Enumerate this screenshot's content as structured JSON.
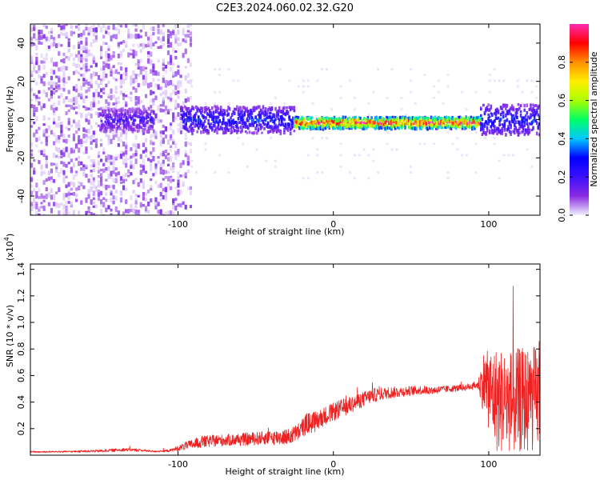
{
  "title": "C2E3.2024.060.02.32.G20",
  "colors": {
    "snr_line": "#ee2020",
    "spectrogram_noise": "#7a2ef0",
    "colorbar": [
      "#f0f0ff",
      "#8a2be2",
      "#3d10ff",
      "#0000ff",
      "#00c8ff",
      "#00ff66",
      "#aaff00",
      "#ffee00",
      "#ff9000",
      "#ff0000",
      "#ff2ab0"
    ]
  },
  "chart_data": [
    {
      "type": "heatmap",
      "name": "spectrogram",
      "xlabel": "Height of straight line (km)",
      "ylabel": "Frequency (Hz)",
      "xlim": [
        -195,
        133
      ],
      "ylim": [
        -50,
        50
      ],
      "x_ticks": [
        -100,
        0,
        100
      ],
      "x_tick_labels": [
        "-100",
        "0",
        "100"
      ],
      "y_ticks": [
        40,
        20,
        0,
        -20,
        -40
      ],
      "y_tick_labels": [
        "40",
        "20",
        "0",
        "-20",
        "-40"
      ],
      "colorbar": {
        "label": "Normalized spectral amplitude",
        "range": [
          0,
          1
        ],
        "ticks": [
          0.0,
          0.2,
          0.4,
          0.6,
          0.8
        ],
        "tick_labels": [
          "0.0",
          "0.2",
          "0.4",
          "0.6",
          "0.8"
        ]
      },
      "features": [
        {
          "x_range": [
            -195,
            -92
          ],
          "freq_range": [
            -50,
            50
          ],
          "amplitude": 0.05,
          "description": "broadband noise"
        },
        {
          "x_range": [
            -150,
            -115
          ],
          "freq_center": 0,
          "freq_halfwidth": 6,
          "amplitude": 0.2
        },
        {
          "x_range": [
            -98,
            -25
          ],
          "freq_center": 0,
          "freq_halfwidth": 7,
          "amplitude": 0.3
        },
        {
          "x_range": [
            -25,
            95
          ],
          "freq_center": -1.5,
          "freq_halfwidth": 3,
          "amplitude": 0.95
        },
        {
          "x_range": [
            95,
            133
          ],
          "freq_center": 0,
          "freq_halfwidth": 8,
          "amplitude": 0.3
        }
      ]
    },
    {
      "type": "line",
      "name": "snr",
      "xlabel": "Height of straight line (km)",
      "ylabel": "SNR (10 * v/v)",
      "y_multiplier_label": "(x10",
      "y_multiplier_exp": "4",
      "xlim": [
        -195,
        133
      ],
      "ylim": [
        0,
        14400
      ],
      "x_ticks": [
        -100,
        0,
        100
      ],
      "x_tick_labels": [
        "-100",
        "0",
        "100"
      ],
      "y_ticks": [
        2000,
        4000,
        6000,
        8000,
        10000,
        12000,
        14000
      ],
      "y_tick_labels": [
        "0.2",
        "0.4",
        "0.6",
        "0.8",
        "1.0",
        "1.2",
        "1.4"
      ],
      "series": [
        {
          "x": [
            -195,
            -170,
            -150,
            -135,
            -125,
            -115,
            -105,
            -95,
            -85,
            -75,
            -65,
            -55,
            -45,
            -35,
            -28,
            -22,
            -17,
            -12,
            -5,
            5,
            15,
            25,
            35,
            45,
            55,
            65,
            75,
            85,
            93,
            97,
            105,
            115,
            125,
            133
          ],
          "y": [
            250,
            270,
            320,
            420,
            380,
            280,
            350,
            700,
            1000,
            1100,
            1150,
            1200,
            1300,
            1350,
            1400,
            1800,
            2400,
            2500,
            3000,
            3500,
            4000,
            4500,
            4700,
            4800,
            4900,
            4900,
            5000,
            5100,
            5300,
            5500,
            4200,
            4000,
            4200,
            4300
          ],
          "noise": [
            60,
            60,
            100,
            120,
            100,
            60,
            100,
            300,
            450,
            450,
            450,
            500,
            500,
            600,
            600,
            700,
            800,
            800,
            700,
            700,
            600,
            550,
            450,
            400,
            350,
            300,
            250,
            250,
            300,
            2500,
            4000,
            4000,
            4000,
            4000
          ]
        }
      ]
    }
  ]
}
